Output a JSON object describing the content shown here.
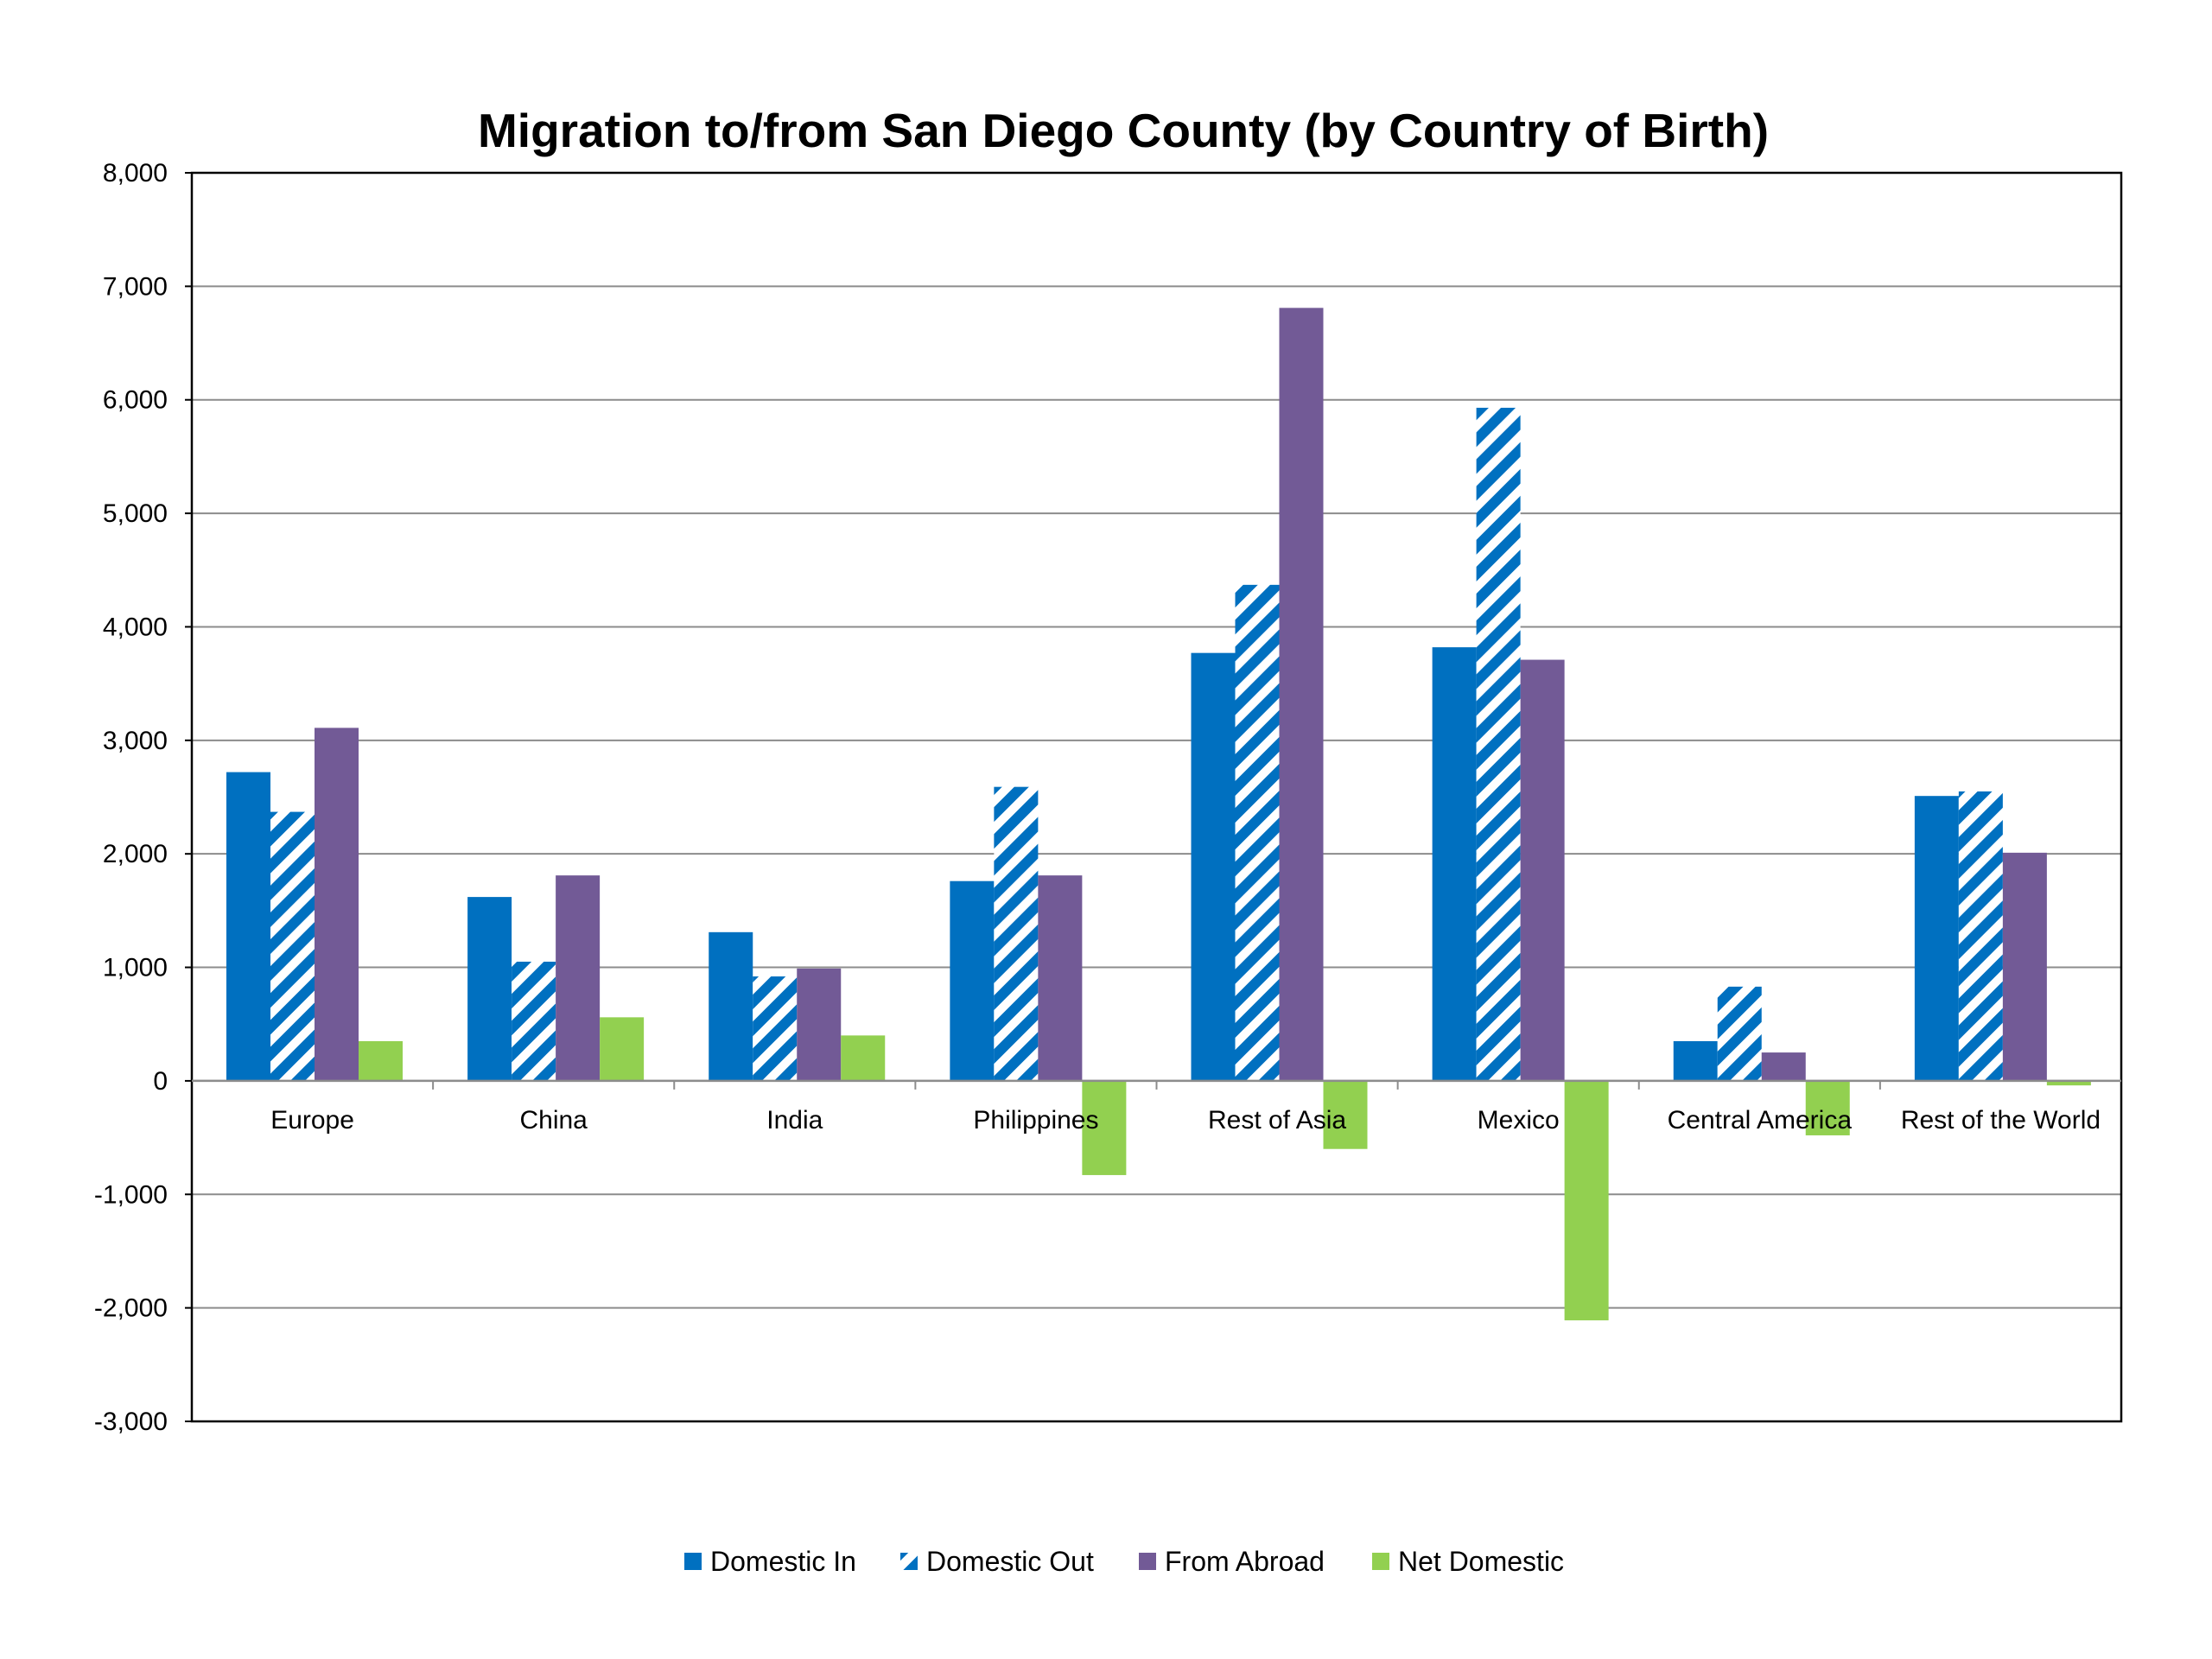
{
  "chart_data": {
    "type": "bar",
    "title": "Migration to/from San Diego County (by Country of Birth)",
    "xlabel": "",
    "ylabel": "",
    "ylim": [
      -3000,
      8000
    ],
    "ytick_step": 1000,
    "yticks": [
      "8,000",
      "7,000",
      "6,000",
      "5,000",
      "4,000",
      "3,000",
      "2,000",
      "1,000",
      "0",
      "-1,000",
      "-2,000",
      "-3,000"
    ],
    "grid": true,
    "legend_position": "bottom",
    "categories": [
      "Europe",
      "China",
      "India",
      "Philippines",
      "Rest of Asia",
      "Mexico",
      "Central America",
      "Rest of the World"
    ],
    "series": [
      {
        "name": "Domestic In",
        "color": "#0070C0",
        "pattern": "solid",
        "values": [
          2720,
          1620,
          1310,
          1760,
          3770,
          3820,
          350,
          2510
        ]
      },
      {
        "name": "Domestic Out",
        "color": "#0070C0",
        "pattern": "diagonal-stripes",
        "values": [
          2370,
          1050,
          920,
          2590,
          4370,
          5930,
          830,
          2550
        ]
      },
      {
        "name": "From Abroad",
        "color": "#725A96",
        "pattern": "solid",
        "values": [
          3110,
          1810,
          990,
          1810,
          6810,
          3710,
          250,
          2010
        ]
      },
      {
        "name": "Net Domestic",
        "color": "#92D050",
        "pattern": "solid",
        "values": [
          350,
          560,
          400,
          -830,
          -600,
          -2110,
          -480,
          -40
        ]
      }
    ]
  }
}
